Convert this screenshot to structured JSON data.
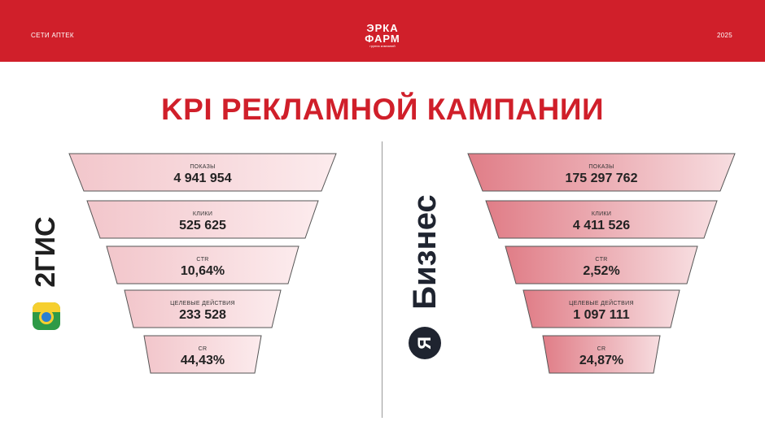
{
  "header": {
    "left_text": "СЕТИ АПТЕК",
    "right_text": "2025",
    "logo": {
      "line1": "ЭРКА",
      "line2": "ФАРМ",
      "subtitle": "группа компаний"
    }
  },
  "title": "KPI РЕКЛАМНОЙ КАМПАНИИ",
  "colors": {
    "brand_red": "#d01f2a",
    "funnel_light": "#f6dadd",
    "funnel_dark": "#e5848c"
  },
  "left_funnel": {
    "brand": "2ГИС",
    "levels": [
      {
        "label": "ПОКАЗЫ",
        "value": "4 941 954"
      },
      {
        "label": "КЛИКИ",
        "value": "525 625"
      },
      {
        "label": "CTR",
        "value": "10,64%"
      },
      {
        "label": "ЦЕЛЕВЫЕ ДЕЙСТВИЯ",
        "value": "233 528"
      },
      {
        "label": "CR",
        "value": "44,43%"
      }
    ]
  },
  "right_funnel": {
    "brand": "Бизнес",
    "brand_mark": "Я",
    "levels": [
      {
        "label": "ПОКАЗЫ",
        "value": "175 297 762"
      },
      {
        "label": "КЛИКИ",
        "value": "4 411 526"
      },
      {
        "label": "CTR",
        "value": "2,52%"
      },
      {
        "label": "ЦЕЛЕВЫЕ ДЕЙСТВИЯ",
        "value": "1 097 111"
      },
      {
        "label": "CR",
        "value": "24,87%"
      }
    ]
  }
}
